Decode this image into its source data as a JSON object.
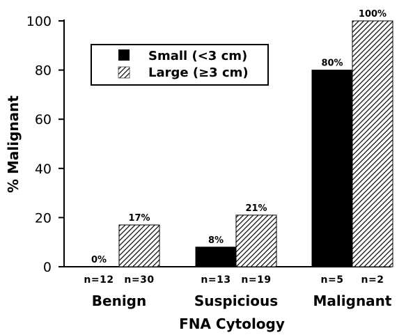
{
  "chart_data": {
    "type": "bar",
    "xlabel": "FNA Cytology",
    "ylabel": "% Malignant",
    "ylim": [
      0,
      100
    ],
    "yticks": [
      0,
      20,
      40,
      60,
      80,
      100
    ],
    "grid": false,
    "legend_position": "top-left",
    "categories": [
      "Benign",
      "Suspicious",
      "Malignant"
    ],
    "series": [
      {
        "name": "Small (<3 cm)",
        "pattern": "solid",
        "color": "#000000",
        "values": [
          0,
          8,
          80
        ],
        "labels": [
          "0%",
          "8%",
          "80%"
        ],
        "n": [
          "n=12",
          "n=13",
          "n=5"
        ]
      },
      {
        "name": "Large (≥3 cm)",
        "pattern": "hatched",
        "color": "#000000",
        "values": [
          17,
          21,
          100
        ],
        "labels": [
          "17%",
          "21%",
          "100%"
        ],
        "n": [
          "n=30",
          "n=19",
          "n=2"
        ]
      }
    ]
  }
}
